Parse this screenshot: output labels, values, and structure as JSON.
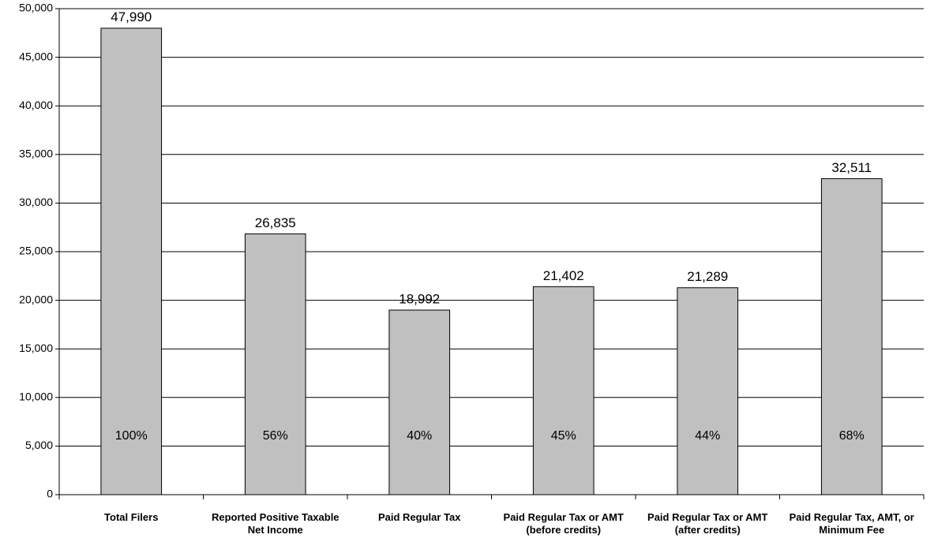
{
  "chart_data": {
    "type": "bar",
    "categories": [
      "Total Filers",
      "Reported Positive Taxable Net Income",
      "Paid Regular Tax",
      "Paid Regular Tax or AMT (before credits)",
      "Paid Regular Tax or AMT (after credits)",
      "Paid Regular Tax, AMT, or Minimum Fee"
    ],
    "values": [
      47990,
      26835,
      18992,
      21402,
      21289,
      32511
    ],
    "value_labels": [
      "47,990",
      "26,835",
      "18,992",
      "21,402",
      "21,289",
      "32,511"
    ],
    "shares": [
      100,
      56,
      40,
      45,
      44,
      68
    ],
    "share_labels": [
      "100%",
      "56%",
      "40%",
      "45%",
      "44%",
      "68%"
    ],
    "color": "#c0c0c0",
    "ylim": [
      0,
      50000
    ],
    "yticks": [
      0,
      {
        "value": 5000,
        "label": "5,000"
      },
      {
        "value": 10000,
        "label": "10,000"
      },
      {
        "value": 15000,
        "label": "15,000"
      },
      {
        "value": 20000,
        "label": "20,000"
      },
      {
        "value": 25000,
        "label": "25,000"
      },
      {
        "value": 30000,
        "label": "30,000"
      },
      {
        "value": 35000,
        "label": "35,000"
      },
      {
        "value": 40000,
        "label": "40,000"
      },
      {
        "value": 45000,
        "label": "45,000"
      },
      {
        "value": 50000,
        "label": "50,000"
      }
    ],
    "grid": true
  }
}
